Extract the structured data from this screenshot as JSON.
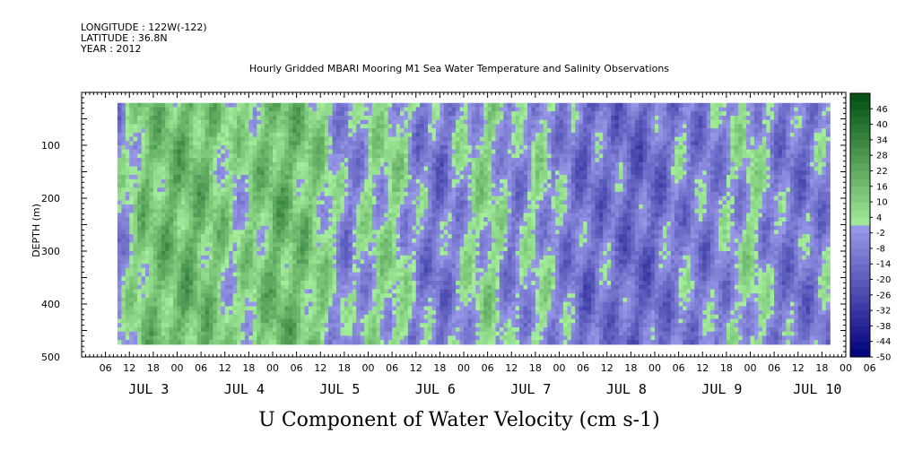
{
  "header": {
    "longitude": "LONGITUDE : 122W(-122)",
    "latitude": "LATITUDE : 36.8N",
    "year": "YEAR : 2012"
  },
  "chart_data": {
    "type": "heatmap",
    "title": "Hourly Gridded MBARI Mooring M1 Sea Water Temperature and Salinity Observations",
    "caption": "U Component of Water Velocity (cm s-1)",
    "ylabel": "DEPTH (m)",
    "y_ticks": [
      "100",
      "200",
      "300",
      "400",
      "500"
    ],
    "ylim": [
      500,
      0
    ],
    "x_hour_ticks": [
      "06",
      "12",
      "18",
      "00",
      "06",
      "12",
      "18",
      "00",
      "06",
      "12",
      "18",
      "00",
      "06",
      "12",
      "18",
      "00",
      "06",
      "12",
      "18",
      "00",
      "06",
      "12",
      "18",
      "00",
      "06",
      "12",
      "18",
      "00",
      "06",
      "12",
      "18",
      "00",
      "06"
    ],
    "x_day_labels": [
      "JUL 3",
      "JUL 4",
      "JUL 5",
      "JUL 6",
      "JUL 7",
      "JUL 8",
      "JUL 9",
      "JUL 10"
    ],
    "x_day_ticks_hours_from_jul3_00": [
      0,
      24,
      48,
      72,
      96,
      120,
      144,
      168
    ],
    "xlim_hours_from_jul3_00": [
      -18,
      174
    ],
    "data_start_hour": -9,
    "data_end_hour": 170,
    "depth_range": [
      20,
      475
    ],
    "colorbar": {
      "labels": [
        "46",
        "40",
        "34",
        "28",
        "22",
        "16",
        "10",
        "4",
        "-2",
        "-8",
        "-14",
        "-20",
        "-26",
        "-32",
        "-38",
        "-44",
        "-50"
      ],
      "levels_min": -50,
      "levels_max": 52,
      "levels_step": 3,
      "min_color": "#00007a",
      "neg_color": "#9999e8",
      "pos_color": "#a6ef9d",
      "max_color": "#004d10"
    },
    "depth_mean_profile": [
      {
        "hour": -9,
        "u": -4
      },
      {
        "hour": -3,
        "u": 12
      },
      {
        "hour": 3,
        "u": 16
      },
      {
        "hour": 9,
        "u": 18
      },
      {
        "hour": 15,
        "u": 12
      },
      {
        "hour": 20,
        "u": 2
      },
      {
        "hour": 25,
        "u": 10
      },
      {
        "hour": 31,
        "u": 18
      },
      {
        "hour": 37,
        "u": 14
      },
      {
        "hour": 43,
        "u": 6
      },
      {
        "hour": 48,
        "u": -8
      },
      {
        "hour": 54,
        "u": 2
      },
      {
        "hour": 60,
        "u": 6
      },
      {
        "hour": 66,
        "u": -6
      },
      {
        "hour": 72,
        "u": -12
      },
      {
        "hour": 78,
        "u": 0
      },
      {
        "hour": 84,
        "u": 6
      },
      {
        "hour": 90,
        "u": -8
      },
      {
        "hour": 96,
        "u": 2
      },
      {
        "hour": 102,
        "u": -6
      },
      {
        "hour": 108,
        "u": -14
      },
      {
        "hour": 114,
        "u": -10
      },
      {
        "hour": 120,
        "u": -16
      },
      {
        "hour": 126,
        "u": -14
      },
      {
        "hour": 132,
        "u": -6
      },
      {
        "hour": 138,
        "u": -10
      },
      {
        "hour": 144,
        "u": -4
      },
      {
        "hour": 150,
        "u": 4
      },
      {
        "hour": 156,
        "u": -8
      },
      {
        "hour": 162,
        "u": -12
      },
      {
        "hour": 168,
        "u": -6
      },
      {
        "hour": 170,
        "u": -4
      }
    ]
  }
}
